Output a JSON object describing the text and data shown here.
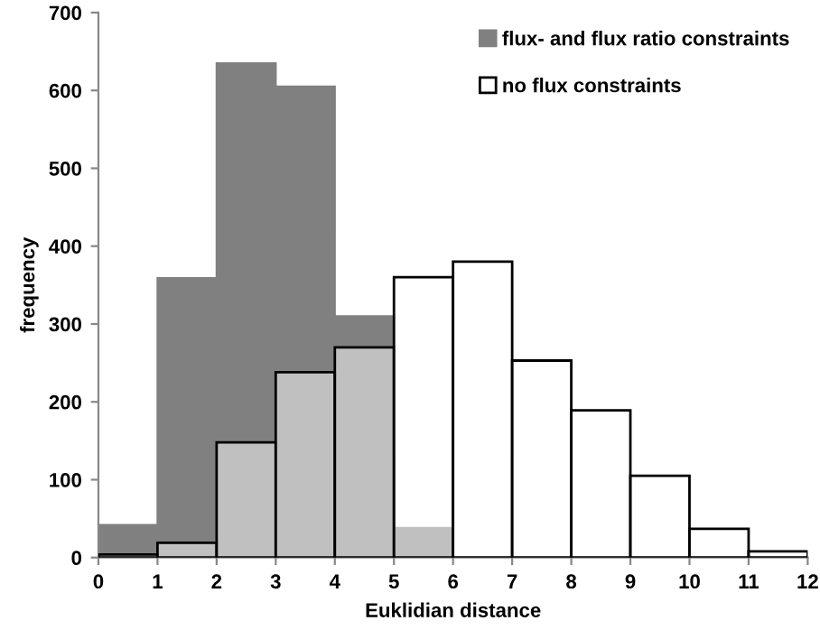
{
  "chart_data": {
    "type": "histogram",
    "xlabel": "Euklidian distance",
    "ylabel": "frequency",
    "bins": [
      0,
      1,
      2,
      3,
      4,
      5,
      6,
      7,
      8,
      9,
      10,
      11,
      12
    ],
    "series": [
      {
        "name": "flux- and flux ratio constraints",
        "color": "#808080",
        "values": [
          42,
          359,
          635,
          605,
          310,
          38,
          null,
          null,
          null,
          null,
          null,
          null
        ]
      },
      {
        "name": "no flux constraints",
        "color": "#ffffff",
        "values": [
          4,
          19,
          148,
          238,
          270,
          360,
          380,
          253,
          189,
          105,
          37,
          8
        ]
      }
    ],
    "xlim": [
      0,
      12
    ],
    "xticks": [
      0,
      1,
      2,
      3,
      4,
      5,
      6,
      7,
      8,
      9,
      10,
      11,
      12
    ],
    "ylim": [
      0,
      700
    ],
    "yticks": [
      0,
      100,
      200,
      300,
      400,
      500,
      600,
      700
    ],
    "grid": false,
    "legend": "top right"
  }
}
